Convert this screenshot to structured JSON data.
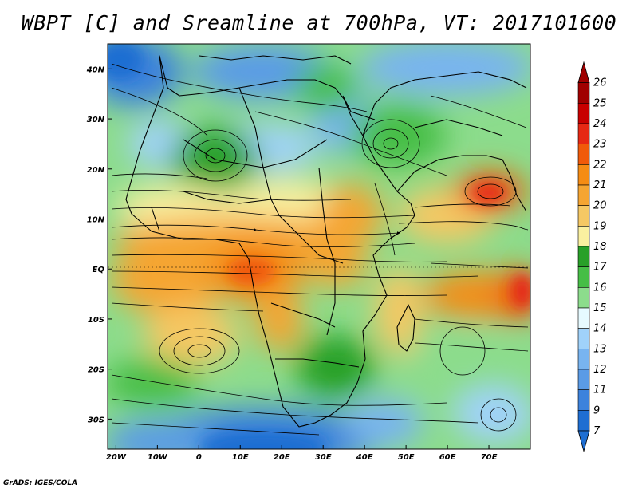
{
  "title": "WBPT [C] and Sreamline at 700hPa, VT: 2017101600",
  "credit": "GrADS: IGES/COLA",
  "map": {
    "lon_range": [
      -22,
      80
    ],
    "lat_range": [
      -36,
      45
    ],
    "lat_ticks": [
      {
        "lat": 40,
        "label": "40N"
      },
      {
        "lat": 30,
        "label": "30N"
      },
      {
        "lat": 20,
        "label": "20N"
      },
      {
        "lat": 10,
        "label": "10N"
      },
      {
        "lat": 0,
        "label": "EQ"
      },
      {
        "lat": -10,
        "label": "10S"
      },
      {
        "lat": -20,
        "label": "20S"
      },
      {
        "lat": -30,
        "label": "30S"
      }
    ],
    "lon_ticks": [
      {
        "lon": -20,
        "label": "20W"
      },
      {
        "lon": -10,
        "label": "10W"
      },
      {
        "lon": 0,
        "label": "0"
      },
      {
        "lon": 10,
        "label": "10E"
      },
      {
        "lon": 20,
        "label": "20E"
      },
      {
        "lon": 30,
        "label": "30E"
      },
      {
        "lon": 40,
        "label": "40E"
      },
      {
        "lon": 50,
        "label": "50E"
      },
      {
        "lon": 60,
        "label": "60E"
      },
      {
        "lon": 70,
        "label": "70E"
      }
    ]
  },
  "colorbar": {
    "levels": [
      "26",
      "25",
      "24",
      "23",
      "22",
      "21",
      "20",
      "19",
      "18",
      "17",
      "16",
      "15",
      "14",
      "13",
      "12",
      "11",
      "9",
      "7"
    ],
    "colors": [
      "#a00000",
      "#c80000",
      "#e62814",
      "#f05a0a",
      "#f58c14",
      "#f5a532",
      "#f5c864",
      "#faf0a0",
      "#28a028",
      "#46be46",
      "#8cdc8c",
      "#e6faff",
      "#a0d2fa",
      "#78b4f0",
      "#5a9be6",
      "#3c82dc",
      "#1e6ed2"
    ],
    "top_color": "#a00000",
    "bottom_color": "#1e6ed2"
  }
}
